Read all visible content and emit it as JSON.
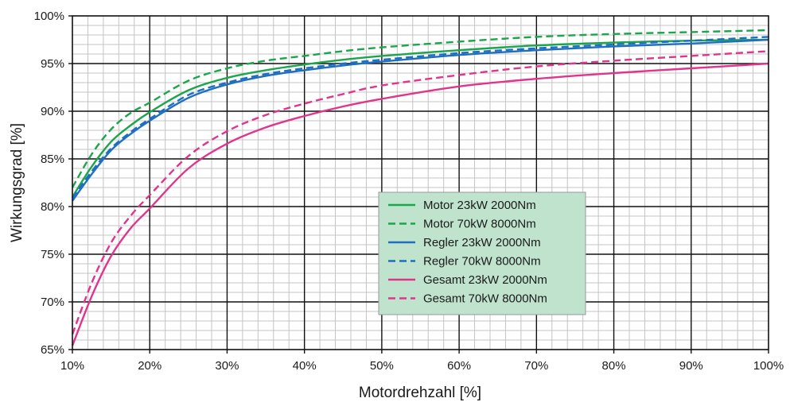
{
  "chart_data": {
    "type": "line",
    "xlabel": "Motordrehzahl [%]",
    "ylabel": "Wirkungsgrad [%]",
    "xlim": [
      10,
      100
    ],
    "ylim": [
      65,
      100
    ],
    "x_ticks": [
      "10%",
      "20%",
      "30%",
      "40%",
      "50%",
      "60%",
      "70%",
      "80%",
      "90%",
      "100%"
    ],
    "y_ticks": [
      "65%",
      "70%",
      "75%",
      "80%",
      "85%",
      "90%",
      "95%",
      "100%"
    ],
    "grid": true,
    "legend_position": "center-right",
    "legend_background": "#bfe3cc",
    "x": [
      10,
      12.5,
      15,
      17.5,
      20,
      25,
      30,
      35,
      40,
      45,
      50,
      60,
      70,
      80,
      90,
      100
    ],
    "series": [
      {
        "name": "Motor 23kW 2000Nm",
        "color": "#1aa64a",
        "dash": "solid",
        "values": [
          81.0,
          84.2,
          86.8,
          88.5,
          89.9,
          92.2,
          93.5,
          94.3,
          94.9,
          95.4,
          95.8,
          96.4,
          96.9,
          97.2,
          97.4,
          97.5
        ]
      },
      {
        "name": "Motor 70kW 8000Nm",
        "color": "#1aa64a",
        "dash": "dashed",
        "values": [
          82.0,
          85.5,
          88.1,
          89.8,
          90.9,
          93.2,
          94.5,
          95.3,
          95.8,
          96.3,
          96.7,
          97.3,
          97.8,
          98.1,
          98.3,
          98.5
        ]
      },
      {
        "name": "Regler 23kW 2000Nm",
        "color": "#1e6fc0",
        "dash": "solid",
        "values": [
          80.6,
          83.4,
          85.9,
          87.6,
          89.0,
          91.4,
          92.8,
          93.7,
          94.3,
          94.8,
          95.2,
          95.9,
          96.4,
          96.8,
          97.1,
          97.5
        ]
      },
      {
        "name": "Regler 70kW 8000Nm",
        "color": "#1e6fc0",
        "dash": "dashed",
        "values": [
          80.9,
          83.7,
          86.1,
          87.8,
          89.2,
          91.7,
          93.0,
          93.9,
          94.5,
          95.0,
          95.4,
          96.1,
          96.6,
          97.0,
          97.4,
          97.8
        ]
      },
      {
        "name": "Gesamt 23kW 2000Nm",
        "color": "#e0358d",
        "dash": "solid",
        "values": [
          65.4,
          70.6,
          74.8,
          77.7,
          79.8,
          84.0,
          86.6,
          88.3,
          89.5,
          90.5,
          91.3,
          92.6,
          93.4,
          94.0,
          94.5,
          95.0
        ]
      },
      {
        "name": "Gesamt 70kW 8000Nm",
        "color": "#e0358d",
        "dash": "dashed",
        "values": [
          66.6,
          72.0,
          76.2,
          79.0,
          81.2,
          85.3,
          87.9,
          89.6,
          90.8,
          91.8,
          92.7,
          93.8,
          94.7,
          95.3,
          95.8,
          96.3
        ]
      }
    ]
  }
}
